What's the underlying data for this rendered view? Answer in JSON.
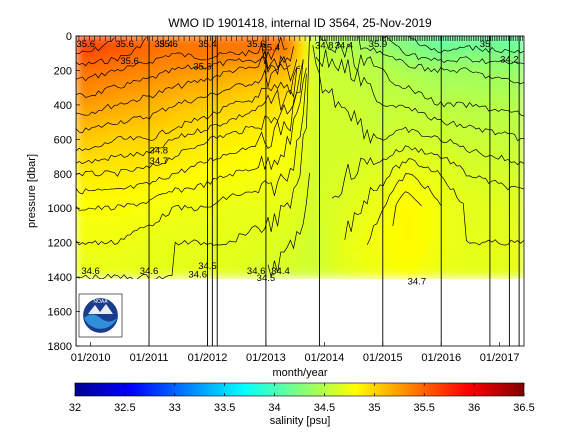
{
  "chart_data": [
    {
      "type": "heatmap",
      "title": "WMO ID 1901418, internal ID 3564, 25-Nov-2019",
      "xlabel": "month/year",
      "ylabel": "pressure [dbar]",
      "x_ticks": [
        "01/2010",
        "01/2011",
        "01/2012",
        "01/2013",
        "01/2014",
        "01/2015",
        "01/2016",
        "01/2017"
      ],
      "y_ticks": [
        "0",
        "200",
        "400",
        "600",
        "800",
        "1000",
        "1200",
        "1400",
        "1600",
        "1800"
      ],
      "ylim": [
        1800,
        0
      ],
      "data_max_pressure": 1400,
      "x_range": [
        "10/2009",
        "06/2017"
      ],
      "columns": [
        {
          "date": "2009-12",
          "salinity": [
            35.7,
            35.6,
            35.45,
            35.25,
            35.05,
            34.9,
            34.8,
            34.75,
            34.7
          ]
        },
        {
          "date": "2010-06",
          "salinity": [
            35.6,
            35.55,
            35.4,
            35.2,
            35.0,
            34.9,
            34.8,
            34.75,
            34.7
          ]
        },
        {
          "date": "2011-01",
          "salinity": [
            35.5,
            35.45,
            35.35,
            35.15,
            35.0,
            34.88,
            34.78,
            34.72,
            34.7
          ]
        },
        {
          "date": "2011-06",
          "salinity": [
            35.45,
            35.4,
            35.3,
            35.1,
            34.95,
            34.85,
            34.75,
            34.7,
            34.7
          ]
        },
        {
          "date": "2012-01",
          "salinity": [
            35.4,
            35.45,
            35.25,
            35.05,
            34.9,
            34.82,
            34.75,
            34.7,
            34.7
          ]
        },
        {
          "date": "2012-06",
          "salinity": [
            35.45,
            35.4,
            35.2,
            35.0,
            34.88,
            34.8,
            34.72,
            34.7,
            34.68
          ]
        },
        {
          "date": "2013-01",
          "salinity": [
            35.5,
            35.4,
            35.15,
            34.95,
            34.85,
            34.78,
            34.72,
            34.68,
            34.65
          ]
        },
        {
          "date": "2013-06",
          "salinity": [
            35.4,
            35.35,
            35.1,
            34.9,
            34.8,
            34.75,
            34.7,
            34.66,
            34.62
          ]
        },
        {
          "date": "2013-11",
          "salinity": [
            34.5,
            34.55,
            34.6,
            34.62,
            34.62,
            34.62,
            34.62,
            34.6,
            34.6
          ]
        },
        {
          "date": "2014-06",
          "salinity": [
            34.4,
            34.5,
            34.55,
            34.6,
            34.62,
            34.65,
            34.68,
            34.72,
            34.7
          ]
        },
        {
          "date": "2015-01",
          "salinity": [
            34.3,
            34.4,
            34.5,
            34.55,
            34.6,
            34.68,
            34.75,
            34.78,
            34.75
          ]
        },
        {
          "date": "2015-06",
          "salinity": [
            34.2,
            34.3,
            34.45,
            34.55,
            34.62,
            34.75,
            34.85,
            34.85,
            34.8
          ]
        },
        {
          "date": "2016-01",
          "salinity": [
            34.1,
            34.2,
            34.4,
            34.5,
            34.6,
            34.7,
            34.75,
            34.75,
            34.72
          ]
        },
        {
          "date": "2016-06",
          "salinity": [
            34.1,
            34.25,
            34.4,
            34.5,
            34.58,
            34.65,
            34.7,
            34.7,
            34.7
          ]
        },
        {
          "date": "2017-06",
          "salinity": [
            34.1,
            34.2,
            34.35,
            34.48,
            34.55,
            34.62,
            34.68,
            34.7,
            34.7
          ]
        }
      ],
      "pressure_levels": [
        0,
        100,
        200,
        400,
        600,
        800,
        1000,
        1200,
        1400
      ],
      "profile_dates": [
        "2009-10",
        "2011-01",
        "2012-01",
        "2012-02",
        "2012-03",
        "2013-01",
        "2013-12",
        "2015-01",
        "2016-01",
        "2016-11",
        "2017-03",
        "2017-05"
      ],
      "contour_labels": [
        {
          "text": "35.6",
          "date": "2009-12",
          "p": 40
        },
        {
          "text": "35.6",
          "date": "2010-08",
          "p": 40
        },
        {
          "text": "35.4",
          "date": "2011-04",
          "p": 40
        },
        {
          "text": "35.6",
          "date": "2011-05",
          "p": 40
        },
        {
          "text": "35.4",
          "date": "2012-01",
          "p": 40
        },
        {
          "text": "35.6",
          "date": "2012-11",
          "p": 40
        },
        {
          "text": "35.4",
          "date": "2013-02",
          "p": 60
        },
        {
          "text": "35.6",
          "date": "2010-09",
          "p": 140
        },
        {
          "text": "35.6",
          "date": "2011-12",
          "p": 170
        },
        {
          "text": "34.8",
          "date": "2011-03",
          "p": 660
        },
        {
          "text": "34.7",
          "date": "2011-03",
          "p": 720
        },
        {
          "text": "34.8",
          "date": "2014-01",
          "p": 50
        },
        {
          "text": "34.4",
          "date": "2014-05",
          "p": 50
        },
        {
          "text": "35.9",
          "date": "2014-12",
          "p": 40
        },
        {
          "text": "35",
          "date": "2016-10",
          "p": 40
        },
        {
          "text": "34.2",
          "date": "2017-03",
          "p": 130
        },
        {
          "text": "34.6",
          "date": "2010-01",
          "p": 1360
        },
        {
          "text": "34.6",
          "date": "2011-01",
          "p": 1360
        },
        {
          "text": "34.6",
          "date": "2011-11",
          "p": 1380
        },
        {
          "text": "34.5",
          "date": "2012-01",
          "p": 1330
        },
        {
          "text": "34.6",
          "date": "2012-11",
          "p": 1360
        },
        {
          "text": "34.5",
          "date": "2013-01",
          "p": 1400
        },
        {
          "text": "34.4",
          "date": "2013-04",
          "p": 1360
        },
        {
          "text": "34.7",
          "date": "2015-08",
          "p": 1420
        }
      ],
      "grid": false
    },
    {
      "type": "colorbar",
      "xlabel": "salinity [psu]",
      "range": [
        32,
        36.5
      ],
      "ticks": [
        "32",
        "32.5",
        "33",
        "33.5",
        "34",
        "34.5",
        "35",
        "35.5",
        "36",
        "36.5"
      ],
      "colormap": "jet"
    }
  ],
  "logo": {
    "text": "NOAA"
  }
}
